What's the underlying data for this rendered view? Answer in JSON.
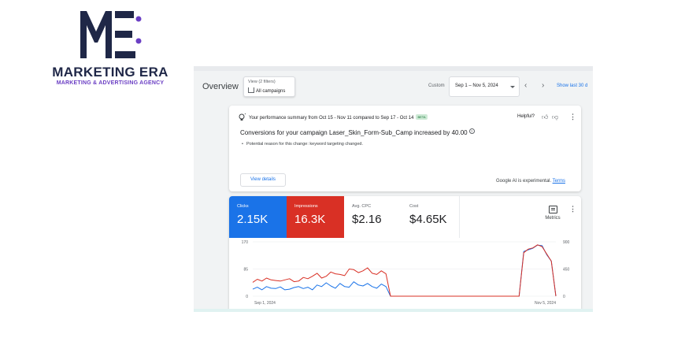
{
  "logo": {
    "brand": "MARKETING ERA",
    "tagline": "MARKETING & ADVERTISING AGENCY",
    "icon": "me-logo-icon",
    "colors": {
      "mark": "#1f2747",
      "dot": "#6b3fc4"
    }
  },
  "header": {
    "title": "Overview",
    "view_filter": {
      "label": "View (2 filters)",
      "value": "All campaigns",
      "icon": "home-icon"
    },
    "date": {
      "label": "Custom",
      "range": "Sep 1 – Nov 5, 2024"
    },
    "show_last": "Show last 30 d"
  },
  "summary": {
    "headline": "Your performance summary from Oct 15 - Nov 11 compared to Sep 17 - Oct 14",
    "badge": "BETA",
    "helpful_label": "Helpful?",
    "main_text": "Conversions for your campaign Laser_Skin_Form-Sub_Camp increased by 40.00",
    "bullet": "Potential reason for this change: keyword targeting changed.",
    "view_details": "View details",
    "ai_note": "Google AI is experimental.",
    "terms": "Terms"
  },
  "metrics": {
    "tiles": [
      {
        "label": "Clicks",
        "value": "2.15K",
        "color": "#1a73e8"
      },
      {
        "label": "Impressions",
        "value": "16.3K",
        "color": "#d93025"
      },
      {
        "label": "Avg. CPC",
        "value": "$2.16"
      },
      {
        "label": "Cost",
        "value": "$4.65K"
      }
    ],
    "metrics_button": "Metrics"
  },
  "chart_data": {
    "type": "line",
    "x_start": "Sep 1, 2024",
    "x_end": "Nov 5, 2024",
    "y_left_ticks": [
      "170",
      "85",
      "0"
    ],
    "y_right_ticks": [
      "900",
      "450",
      "0"
    ],
    "ylim_left": [
      0,
      170
    ],
    "ylim_right": [
      0,
      900
    ],
    "series": [
      {
        "color": "#1a73e8",
        "axis": "left",
        "values": [
          22,
          28,
          20,
          30,
          25,
          24,
          29,
          20,
          22,
          27,
          30,
          24,
          28,
          20,
          35,
          30,
          42,
          32,
          25,
          40,
          30,
          28,
          45,
          35,
          32,
          40,
          30,
          25,
          38,
          30,
          0,
          0,
          0,
          0,
          0,
          0,
          0,
          0,
          0,
          0,
          0,
          0,
          0,
          0,
          0,
          0,
          0,
          0,
          0,
          0,
          0,
          0,
          0,
          0,
          0,
          0,
          0,
          0,
          0,
          140,
          145,
          150,
          160,
          158,
          130,
          110,
          0
        ]
      },
      {
        "color": "#d93025",
        "axis": "right",
        "values": [
          230,
          280,
          250,
          300,
          270,
          260,
          250,
          270,
          290,
          240,
          250,
          310,
          290,
          330,
          380,
          300,
          330,
          400,
          370,
          360,
          340,
          450,
          440,
          390,
          420,
          470,
          380,
          360,
          420,
          370,
          0,
          0,
          0,
          0,
          0,
          0,
          0,
          0,
          0,
          0,
          0,
          0,
          0,
          0,
          0,
          0,
          0,
          0,
          0,
          0,
          0,
          0,
          0,
          0,
          0,
          0,
          0,
          0,
          0,
          720,
          780,
          800,
          850,
          820,
          700,
          580,
          0
        ]
      }
    ]
  }
}
